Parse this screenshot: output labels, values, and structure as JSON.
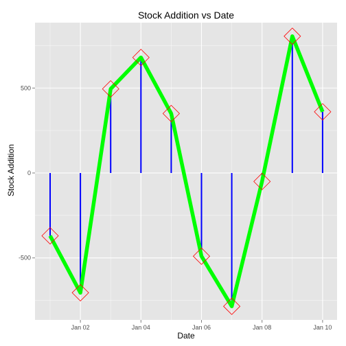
{
  "chart_data": {
    "type": "line",
    "title": "Stock Addition vs Date",
    "xlabel": "Date",
    "ylabel": "Stock Addition",
    "x": [
      "Jan 01",
      "Jan 02",
      "Jan 03",
      "Jan 04",
      "Jan 05",
      "Jan 06",
      "Jan 07",
      "Jan 08",
      "Jan 09",
      "Jan 10"
    ],
    "values": [
      -370,
      -705,
      495,
      680,
      350,
      -490,
      -785,
      -50,
      805,
      360
    ],
    "xticks": [
      "Jan 02",
      "Jan 04",
      "Jan 06",
      "Jan 08",
      "Jan 10"
    ],
    "yticks": [
      -500,
      0,
      500
    ],
    "ylim": [
      -865,
      885
    ],
    "grid": true,
    "colors": {
      "panel_background": "#E5E5E5",
      "grid": "#FFFFFF",
      "line": "#00FF00",
      "stems": "#0000FF",
      "markers": "#FF0000"
    }
  }
}
